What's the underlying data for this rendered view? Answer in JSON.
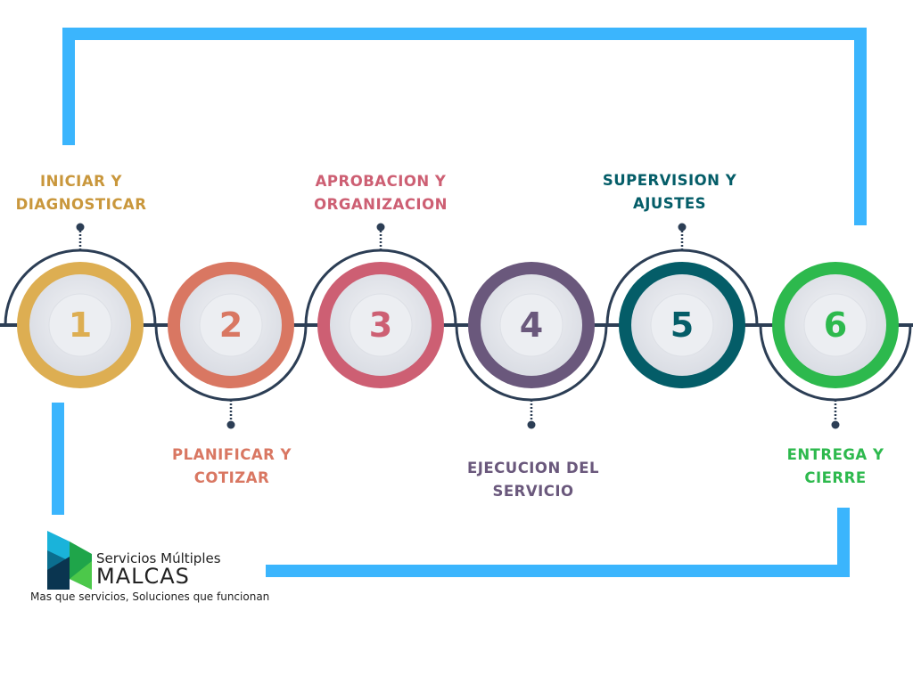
{
  "steps": [
    {
      "number": "1",
      "label_line1": "INICIAR Y",
      "label_line2": "DIAGNOSTICAR",
      "color": "#DDAE52"
    },
    {
      "number": "2",
      "label_line1": "PLANIFICAR Y",
      "label_line2": "COTIZAR",
      "color": "#D97762"
    },
    {
      "number": "3",
      "label_line1": "APROBACION Y",
      "label_line2": "ORGANIZACION",
      "color": "#CD5F73"
    },
    {
      "number": "4",
      "label_line1": "EJECUCION DEL",
      "label_line2": "SERVICIO",
      "color": "#6A587C"
    },
    {
      "number": "5",
      "label_line1": "SUPERVISION Y",
      "label_line2": "AJUSTES",
      "color": "#045D68"
    },
    {
      "number": "6",
      "label_line1": "ENTREGA Y",
      "label_line2": "CIERRE",
      "color": "#2DB94D"
    }
  ],
  "frame_color": "#3BB5FD",
  "line_color": "#2C3E55",
  "brand": {
    "line1": "Servicios Múltiples",
    "line2": "MALCAS",
    "tagline": "Mas que servicios, Soluciones que funcionan"
  }
}
